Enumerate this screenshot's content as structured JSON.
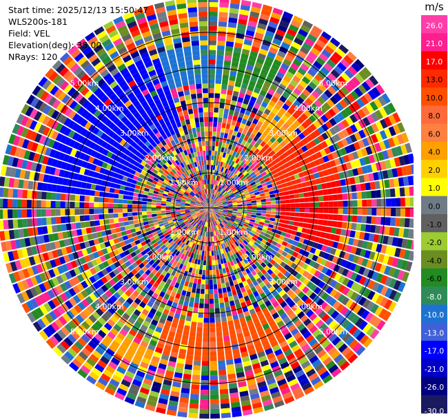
{
  "header": {
    "start_time": "Start time: 2025/12/13 15:50:47",
    "station": "WLS200s-181",
    "field": "Field: VEL",
    "elevation": "Elevation(deg): 35.00",
    "nrays": "NRays: 120"
  },
  "chart_data": {
    "type": "heatmap",
    "projection": "polar-ppi",
    "field": "VEL",
    "nrays": 120,
    "range_max_km": 6.0,
    "range_rings_km": [
      1.0,
      2.0,
      3.0,
      4.0,
      5.0
    ],
    "ring_labels": [
      "1.00km",
      "2.00km",
      "3.00km",
      "4.00km",
      "5.00km"
    ],
    "colorbar": {
      "unit": "m/s",
      "tick_labels": [
        "26.0",
        "21.0",
        "17.0",
        "13.0",
        "10.0",
        "8.0",
        "6.0",
        "4.0",
        "2.0",
        "1.0",
        "0.0",
        "-1.0",
        "-2.0",
        "-4.0",
        "-6.0",
        "-8.0",
        "-10.0",
        "-13.0",
        "-17.0",
        "-21.0",
        "-26.0",
        "-30.0"
      ],
      "colors": [
        "#ff3ea8",
        "#ff1f8e",
        "#ff0000",
        "#ff2a00",
        "#ff5000",
        "#ff6a3a",
        "#ff8040",
        "#ffa000",
        "#ffd000",
        "#ffff00",
        "#707b88",
        "#606060",
        "#9ccc32",
        "#6b8e23",
        "#228b22",
        "#2e8b57",
        "#1e73d2",
        "#4060d8",
        "#0000ff",
        "#0000c8",
        "#000080",
        "#1a1a60"
      ]
    },
    "coherent_regions": [
      {
        "az_from_deg": -60,
        "az_to_deg": -18,
        "r_from_km": 2.3,
        "r_to_km": 4.6,
        "value_ms": -17.0
      },
      {
        "az_from_deg": -84,
        "az_to_deg": -58,
        "r_from_km": 2.2,
        "r_to_km": 4.8,
        "value_ms": -17.0
      },
      {
        "az_from_deg": -20,
        "az_to_deg": 5,
        "r_from_km": 3.6,
        "r_to_km": 4.6,
        "value_ms": -10.0
      },
      {
        "az_from_deg": 5,
        "az_to_deg": 28,
        "r_from_km": 3.6,
        "r_to_km": 4.6,
        "value_ms": -6.0
      },
      {
        "az_from_deg": 30,
        "az_to_deg": 50,
        "r_from_km": 2.4,
        "r_to_km": 3.6,
        "value_ms": 4.0
      },
      {
        "az_from_deg": 38,
        "az_to_deg": 78,
        "r_from_km": 2.0,
        "r_to_km": 3.8,
        "value_ms": 13.0
      },
      {
        "az_from_deg": 78,
        "az_to_deg": 108,
        "r_from_km": 2.0,
        "r_to_km": 3.8,
        "value_ms": 17.0
      },
      {
        "az_from_deg": 150,
        "az_to_deg": 200,
        "r_from_km": 3.3,
        "r_to_km": 4.3,
        "value_ms": 10.0
      },
      {
        "az_from_deg": 200,
        "az_to_deg": 218,
        "r_from_km": 4.3,
        "r_to_km": 4.9,
        "value_ms": 4.0
      }
    ]
  }
}
